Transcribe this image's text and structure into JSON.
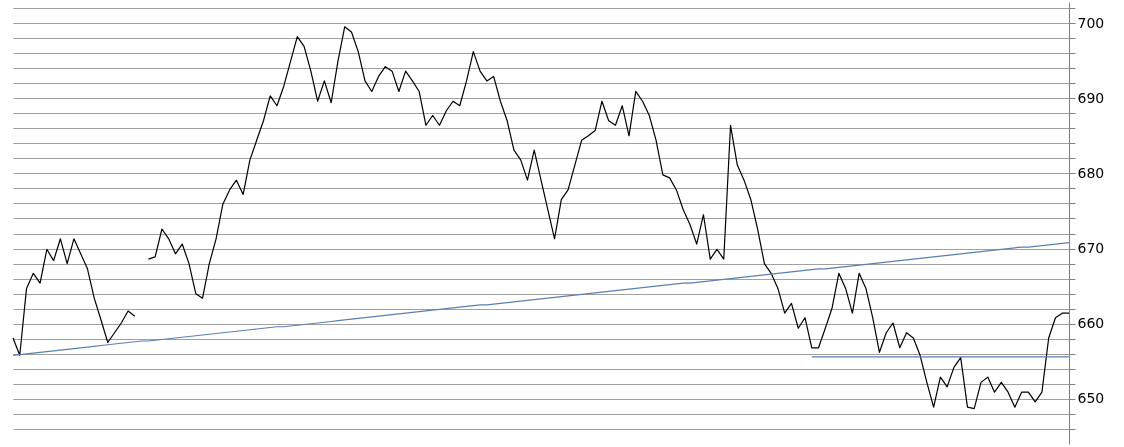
{
  "chart_data": {
    "type": "line",
    "ylim": [
      644,
      702.8
    ],
    "tick_labels": "y",
    "grid": "y",
    "categories": [
      null,
      null,
      null,
      null,
      null,
      null,
      null,
      null,
      null,
      null,
      null,
      null,
      null,
      null,
      null,
      null,
      null,
      null,
      null,
      null,
      null,
      null,
      null,
      null,
      null,
      null,
      null,
      null,
      null,
      null,
      null,
      null,
      null,
      null,
      null,
      null,
      null,
      null,
      null,
      null,
      null,
      null,
      null,
      null,
      null,
      null,
      null,
      null,
      null,
      null,
      null,
      null,
      null,
      null,
      null,
      null,
      null,
      null,
      null,
      null,
      null,
      null,
      null,
      null,
      null,
      null,
      null,
      null,
      null,
      null,
      null,
      null,
      null,
      null,
      null,
      null,
      null,
      null,
      null,
      null,
      null,
      null,
      null,
      null,
      null,
      null,
      null,
      null,
      null,
      null,
      null,
      null,
      null,
      null,
      null,
      null,
      null,
      null,
      null,
      null,
      null,
      null,
      null,
      null,
      null,
      null,
      null,
      null,
      null,
      null,
      null,
      null,
      null,
      null,
      null,
      null,
      null,
      null,
      null,
      null,
      null,
      null,
      null,
      null,
      null,
      null,
      null,
      null,
      null,
      null,
      null,
      null,
      null,
      null,
      null,
      null,
      null,
      null,
      null,
      null,
      null,
      null,
      null,
      null,
      null,
      null,
      null,
      null,
      null,
      null,
      null,
      null,
      null,
      null,
      null,
      null,
      null
    ],
    "yticks": [
      {
        "value": 646,
        "label": null
      },
      {
        "value": 648,
        "label": null
      },
      650,
      {
        "value": 652,
        "label": null
      },
      {
        "value": 654,
        "label": null
      },
      {
        "value": 656,
        "label": null
      },
      {
        "value": 658,
        "label": null
      },
      660,
      {
        "value": 662,
        "label": null
      },
      {
        "value": 664,
        "label": null
      },
      {
        "value": 666,
        "label": null
      },
      {
        "value": 668,
        "label": null
      },
      670,
      {
        "value": 672,
        "label": null
      },
      {
        "value": 674,
        "label": null
      },
      {
        "value": 676,
        "label": null
      },
      {
        "value": 678,
        "label": null
      },
      680,
      {
        "value": 682,
        "label": null
      },
      {
        "value": 684,
        "label": null
      },
      {
        "value": 686,
        "label": null
      },
      {
        "value": 688,
        "label": null
      },
      690,
      {
        "value": 692,
        "label": null
      },
      {
        "value": 694,
        "label": null
      },
      {
        "value": 696,
        "label": null
      },
      {
        "value": 698,
        "label": null
      },
      700,
      {
        "value": 702,
        "label": null
      }
    ],
    "series": [
      {
        "color": "#000000",
        "values": [
          658.1,
          655.8,
          664.7,
          666.7,
          665.4,
          669.9,
          668.4,
          671.3,
          668.0,
          671.3,
          669.3,
          667.3,
          663.4,
          660.5,
          657.5,
          658.8,
          660.1,
          661.7,
          661.0,
          null,
          668.6,
          668.9,
          672.6,
          671.3,
          669.3,
          670.6,
          668.0,
          664.0,
          663.4,
          668.0,
          671.3,
          675.9,
          677.8,
          679.1,
          677.2,
          681.8,
          684.4,
          687.0,
          690.3,
          689.0,
          691.6,
          694.9,
          698.2,
          696.9,
          693.6,
          689.6,
          692.3,
          689.4,
          694.9,
          699.5,
          698.8,
          696.2,
          692.3,
          690.9,
          692.9,
          694.2,
          693.6,
          690.9,
          693.6,
          692.3,
          690.9,
          686.4,
          687.7,
          686.4,
          688.3,
          689.6,
          689.0,
          692.3,
          696.2,
          693.6,
          692.3,
          692.9,
          689.6,
          687.0,
          683.1,
          681.8,
          679.1,
          683.1,
          679.1,
          675.2,
          671.3,
          676.5,
          677.8,
          681.1,
          684.4,
          685.0,
          685.7,
          689.6,
          687.0,
          686.4,
          689.0,
          685.0,
          690.9,
          689.6,
          687.7,
          684.4,
          679.8,
          679.4,
          677.8,
          675.2,
          673.2,
          670.6,
          674.5,
          668.6,
          669.9,
          668.6,
          686.4,
          681.1,
          679.1,
          676.5,
          672.6,
          668.0,
          666.7,
          664.7,
          661.4,
          662.7,
          659.4,
          660.8,
          656.8,
          656.8,
          659.4,
          662.1,
          666.7,
          664.7,
          661.4,
          666.7,
          664.7,
          660.8,
          656.2,
          658.8,
          660.1,
          656.8,
          658.8,
          658.1,
          655.8,
          652.2,
          648.9,
          652.9,
          651.6,
          654.2,
          655.5,
          648.9,
          648.7,
          652.2,
          652.9,
          650.9,
          652.2,
          650.9,
          648.9,
          650.9,
          650.9,
          649.6,
          650.9,
          658.1,
          660.8,
          661.4,
          661.4
        ]
      },
      {
        "color": "#5b7fb0",
        "values": [
          655.8,
          655.9,
          656.0,
          656.1,
          656.2,
          656.3,
          656.4,
          656.5,
          656.6,
          656.7,
          656.8,
          656.9,
          657.0,
          657.1,
          657.2,
          657.3,
          657.4,
          657.5,
          657.6,
          657.7,
          657.7,
          657.8,
          657.9,
          658.0,
          658.1,
          658.2,
          658.3,
          658.4,
          658.5,
          658.6,
          658.7,
          658.8,
          658.9,
          659.0,
          659.1,
          659.2,
          659.3,
          659.4,
          659.5,
          659.6,
          659.6,
          659.7,
          659.8,
          659.9,
          660.0,
          660.1,
          660.2,
          660.3,
          660.4,
          660.5,
          660.6,
          660.7,
          660.8,
          660.9,
          661.0,
          661.1,
          661.2,
          661.3,
          661.4,
          661.5,
          661.6,
          661.7,
          661.8,
          661.9,
          662.0,
          662.1,
          662.2,
          662.3,
          662.4,
          662.5,
          662.5,
          662.6,
          662.7,
          662.8,
          662.9,
          663.0,
          663.1,
          663.2,
          663.3,
          663.4,
          663.5,
          663.6,
          663.7,
          663.8,
          663.9,
          664.0,
          664.1,
          664.2,
          664.3,
          664.4,
          664.5,
          664.6,
          664.7,
          664.8,
          664.9,
          665.0,
          665.1,
          665.2,
          665.3,
          665.4,
          665.4,
          665.5,
          665.6,
          665.7,
          665.8,
          665.9,
          666.0,
          666.1,
          666.2,
          666.3,
          666.4,
          666.5,
          666.6,
          666.7,
          666.8,
          666.9,
          667.0,
          667.1,
          667.2,
          667.3,
          667.3,
          667.4,
          667.5,
          667.6,
          667.7,
          667.8,
          667.9,
          668.0,
          668.1,
          668.2,
          668.3,
          668.4,
          668.5,
          668.6,
          668.7,
          668.8,
          668.9,
          669.0,
          669.1,
          669.2,
          669.3,
          669.4,
          669.5,
          669.6,
          669.7,
          669.8,
          669.9,
          670.0,
          670.1,
          670.2,
          670.2,
          670.3,
          670.4,
          670.5,
          670.6,
          670.7,
          670.8
        ]
      },
      {
        "color": "#5b7fb0",
        "values": [
          null,
          null,
          null,
          null,
          null,
          null,
          null,
          null,
          null,
          null,
          null,
          null,
          null,
          null,
          null,
          null,
          null,
          null,
          null,
          null,
          null,
          null,
          null,
          null,
          null,
          null,
          null,
          null,
          null,
          null,
          null,
          null,
          null,
          null,
          null,
          null,
          null,
          null,
          null,
          null,
          null,
          null,
          null,
          null,
          null,
          null,
          null,
          null,
          null,
          null,
          null,
          null,
          null,
          null,
          null,
          null,
          null,
          null,
          null,
          null,
          null,
          null,
          null,
          null,
          null,
          null,
          null,
          null,
          null,
          null,
          null,
          null,
          null,
          null,
          null,
          null,
          null,
          null,
          null,
          null,
          null,
          null,
          null,
          null,
          null,
          null,
          null,
          null,
          null,
          null,
          null,
          null,
          null,
          null,
          null,
          null,
          null,
          null,
          null,
          null,
          null,
          null,
          null,
          null,
          null,
          null,
          null,
          null,
          null,
          null,
          null,
          null,
          null,
          null,
          null,
          null,
          null,
          null,
          655.6,
          655.6,
          655.6,
          655.6,
          655.6,
          655.6,
          655.6,
          655.6,
          655.6,
          655.6,
          655.6,
          655.6,
          655.6,
          655.6,
          655.6,
          655.6,
          655.6,
          655.6,
          655.6,
          655.6,
          655.6,
          655.6,
          655.6,
          655.6,
          655.6,
          655.6,
          655.6,
          655.6,
          655.6,
          655.6,
          655.6,
          655.6,
          655.6,
          655.6,
          655.6,
          655.6,
          655.6,
          655.6,
          655.6
        ]
      }
    ]
  }
}
